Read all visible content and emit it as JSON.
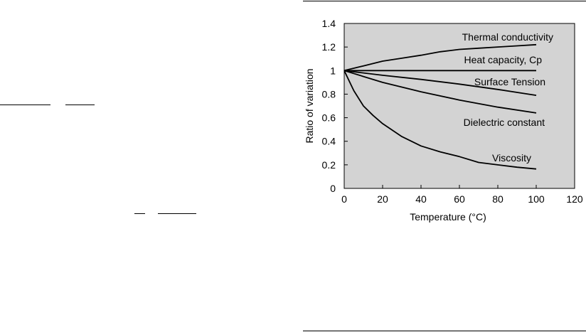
{
  "colors": {
    "plot_bg": "#d3d3d3",
    "line": "#000000"
  },
  "chart_data": {
    "type": "line",
    "title": "",
    "xlabel": "Temperature (°C)",
    "ylabel": "Ratio of variation",
    "xlim": [
      0,
      120
    ],
    "ylim": [
      0,
      1.4
    ],
    "x_ticks": [
      "0",
      "20",
      "40",
      "60",
      "80",
      "100",
      "120"
    ],
    "y_ticks": [
      "0",
      "0.2",
      "0.4",
      "0.6",
      "0.8",
      "1",
      "1.2",
      "1.4"
    ],
    "grid": false,
    "legend": "none",
    "series": [
      {
        "name": "Thermal conductivity",
        "x": [
          0,
          10,
          20,
          30,
          40,
          50,
          60,
          70,
          80,
          90,
          100
        ],
        "y": [
          1.0,
          1.04,
          1.08,
          1.105,
          1.13,
          1.16,
          1.18,
          1.19,
          1.2,
          1.21,
          1.22
        ]
      },
      {
        "name": "Heat capacity, Cp",
        "x": [
          0,
          20,
          40,
          60,
          80,
          100
        ],
        "y": [
          1.0,
          1.0,
          1.0,
          1.0,
          1.0,
          1.0
        ]
      },
      {
        "name": "Surface Tension",
        "x": [
          0,
          20,
          40,
          60,
          80,
          100
        ],
        "y": [
          1.0,
          0.96,
          0.925,
          0.885,
          0.84,
          0.79
        ]
      },
      {
        "name": "Dielectric constant",
        "x": [
          0,
          10,
          20,
          40,
          60,
          80,
          100
        ],
        "y": [
          1.0,
          0.95,
          0.9,
          0.82,
          0.75,
          0.69,
          0.64
        ]
      },
      {
        "name": "Viscosity",
        "x": [
          0,
          5,
          10,
          15,
          20,
          30,
          40,
          50,
          60,
          70,
          80,
          90,
          100
        ],
        "y": [
          1.0,
          0.83,
          0.7,
          0.62,
          0.55,
          0.44,
          0.36,
          0.31,
          0.27,
          0.22,
          0.2,
          0.18,
          0.165
        ]
      }
    ]
  }
}
